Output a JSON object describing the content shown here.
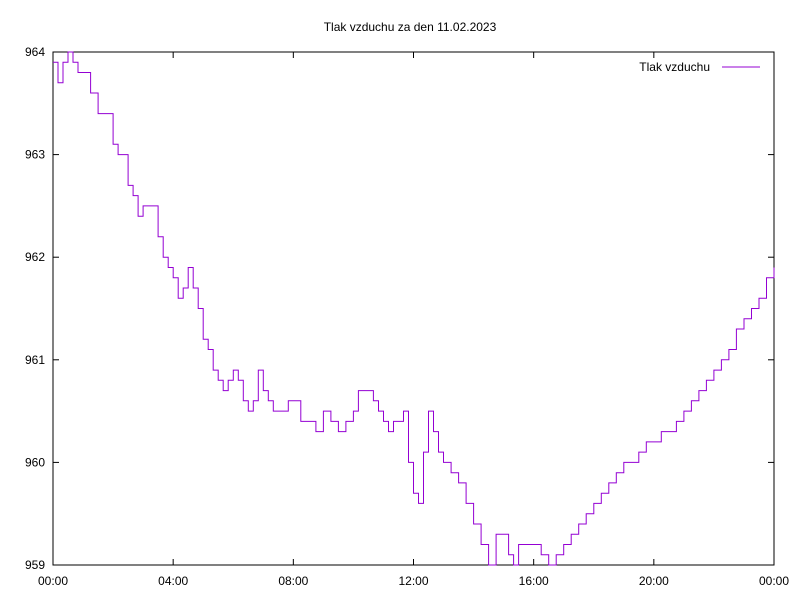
{
  "chart_data": {
    "type": "line",
    "title": "Tlak vzduchu za den 11.02.2023",
    "xlabel": "",
    "ylabel": "",
    "xlim": [
      "00:00",
      "24:00"
    ],
    "ylim": [
      959,
      964
    ],
    "x_ticks": [
      "00:00",
      "04:00",
      "08:00",
      "12:00",
      "16:00",
      "20:00",
      "00:00"
    ],
    "y_ticks": [
      "959",
      "960",
      "961",
      "962",
      "963",
      "964"
    ],
    "grid": false,
    "legend_position": "top-right",
    "line_color": "#9400d3",
    "series": [
      {
        "name": "Tlak vzduchu",
        "x": [
          "00:00",
          "00:10",
          "00:20",
          "00:30",
          "00:40",
          "00:50",
          "01:00",
          "01:15",
          "01:30",
          "01:45",
          "02:00",
          "02:10",
          "02:20",
          "02:30",
          "02:40",
          "02:50",
          "03:00",
          "03:10",
          "03:20",
          "03:30",
          "03:40",
          "03:50",
          "04:00",
          "04:10",
          "04:20",
          "04:30",
          "04:40",
          "04:50",
          "05:00",
          "05:10",
          "05:20",
          "05:30",
          "05:40",
          "05:50",
          "06:00",
          "06:10",
          "06:20",
          "06:30",
          "06:40",
          "06:50",
          "07:00",
          "07:10",
          "07:20",
          "07:30",
          "07:40",
          "07:50",
          "08:00",
          "08:15",
          "08:30",
          "08:45",
          "09:00",
          "09:15",
          "09:30",
          "09:45",
          "10:00",
          "10:10",
          "10:20",
          "10:30",
          "10:40",
          "10:50",
          "11:00",
          "11:10",
          "11:20",
          "11:30",
          "11:40",
          "11:50",
          "12:00",
          "12:10",
          "12:20",
          "12:30",
          "12:40",
          "12:50",
          "13:00",
          "13:15",
          "13:30",
          "13:45",
          "14:00",
          "14:15",
          "14:30",
          "14:45",
          "15:00",
          "15:10",
          "15:20",
          "15:30",
          "15:40",
          "15:50",
          "16:00",
          "16:15",
          "16:30",
          "16:45",
          "17:00",
          "17:15",
          "17:30",
          "17:45",
          "18:00",
          "18:15",
          "18:30",
          "18:45",
          "19:00",
          "19:15",
          "19:30",
          "19:45",
          "20:00",
          "20:15",
          "20:30",
          "20:45",
          "21:00",
          "21:15",
          "21:30",
          "21:45",
          "22:00",
          "22:15",
          "22:30",
          "22:45",
          "23:00",
          "23:15",
          "23:30",
          "23:45",
          "24:00"
        ],
        "values": [
          963.9,
          963.7,
          963.9,
          964.0,
          963.9,
          963.8,
          963.8,
          963.6,
          963.4,
          963.4,
          963.1,
          963.0,
          963.0,
          962.7,
          962.6,
          962.4,
          962.5,
          962.5,
          962.5,
          962.2,
          962.0,
          961.9,
          961.8,
          961.6,
          961.7,
          961.9,
          961.7,
          961.5,
          961.2,
          961.1,
          960.9,
          960.8,
          960.7,
          960.8,
          960.9,
          960.8,
          960.6,
          960.5,
          960.6,
          960.9,
          960.7,
          960.6,
          960.5,
          960.5,
          960.5,
          960.6,
          960.6,
          960.4,
          960.4,
          960.3,
          960.5,
          960.4,
          960.3,
          960.4,
          960.5,
          960.7,
          960.7,
          960.7,
          960.6,
          960.5,
          960.4,
          960.3,
          960.4,
          960.4,
          960.5,
          960.0,
          959.7,
          959.6,
          960.1,
          960.5,
          960.3,
          960.1,
          960.0,
          959.9,
          959.8,
          959.6,
          959.4,
          959.2,
          959.0,
          959.3,
          959.3,
          959.1,
          959.0,
          959.2,
          959.2,
          959.2,
          959.2,
          959.1,
          959.0,
          959.1,
          959.2,
          959.3,
          959.4,
          959.5,
          959.6,
          959.7,
          959.8,
          959.9,
          960.0,
          960.0,
          960.1,
          960.2,
          960.2,
          960.3,
          960.3,
          960.4,
          960.5,
          960.6,
          960.7,
          960.8,
          960.9,
          961.0,
          961.1,
          961.3,
          961.4,
          961.5,
          961.6,
          961.8,
          961.9
        ]
      }
    ]
  }
}
